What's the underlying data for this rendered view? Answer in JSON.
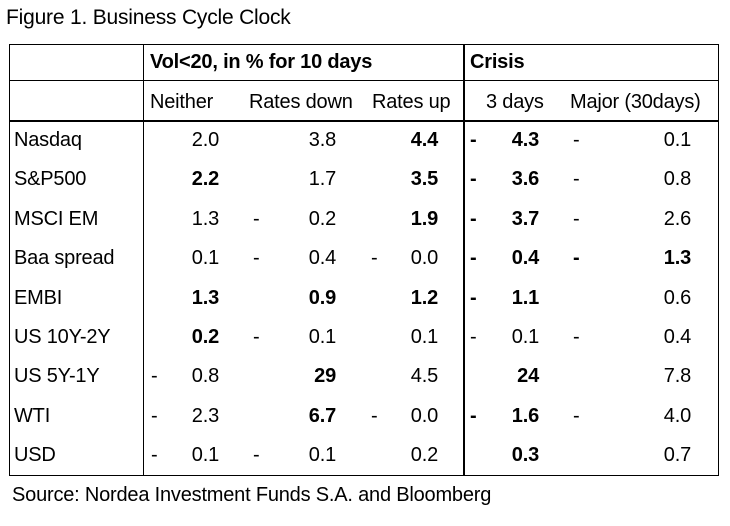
{
  "title": "Figure 1. Business Cycle Clock",
  "source": "Source: Nordea Investment Funds S.A. and Bloomberg",
  "group_headers": {
    "vol": "Vol<20, in % for 10 days",
    "crisis": "Crisis"
  },
  "columns": [
    "Neither",
    "Rates down",
    "Rates up",
    "3 days",
    "Major (30days)"
  ],
  "rows": [
    {
      "label": "Nasdaq",
      "cells": [
        {
          "v": "2.0",
          "neg": false,
          "bold": false
        },
        {
          "v": "3.8",
          "neg": false,
          "bold": false
        },
        {
          "v": "4.4",
          "neg": false,
          "bold": true
        },
        {
          "v": "4.3",
          "neg": true,
          "bold": true
        },
        {
          "v": "0.1",
          "neg": true,
          "bold": false
        }
      ]
    },
    {
      "label": "S&P500",
      "cells": [
        {
          "v": "2.2",
          "neg": false,
          "bold": true
        },
        {
          "v": "1.7",
          "neg": false,
          "bold": false
        },
        {
          "v": "3.5",
          "neg": false,
          "bold": true
        },
        {
          "v": "3.6",
          "neg": true,
          "bold": true
        },
        {
          "v": "0.8",
          "neg": true,
          "bold": false
        }
      ]
    },
    {
      "label": "MSCI EM",
      "cells": [
        {
          "v": "1.3",
          "neg": false,
          "bold": false
        },
        {
          "v": "0.2",
          "neg": true,
          "bold": false
        },
        {
          "v": "1.9",
          "neg": false,
          "bold": true
        },
        {
          "v": "3.7",
          "neg": true,
          "bold": true
        },
        {
          "v": "2.6",
          "neg": true,
          "bold": false
        }
      ]
    },
    {
      "label": "Baa spread",
      "cells": [
        {
          "v": "0.1",
          "neg": false,
          "bold": false
        },
        {
          "v": "0.4",
          "neg": true,
          "bold": false
        },
        {
          "v": "0.0",
          "neg": true,
          "bold": false
        },
        {
          "v": "0.4",
          "neg": true,
          "bold": true
        },
        {
          "v": "1.3",
          "neg": true,
          "bold": true
        }
      ]
    },
    {
      "label": "EMBI",
      "cells": [
        {
          "v": "1.3",
          "neg": false,
          "bold": true
        },
        {
          "v": "0.9",
          "neg": false,
          "bold": true
        },
        {
          "v": "1.2",
          "neg": false,
          "bold": true
        },
        {
          "v": "1.1",
          "neg": true,
          "bold": true
        },
        {
          "v": "0.6",
          "neg": false,
          "bold": false
        }
      ]
    },
    {
      "label": "US 10Y-2Y",
      "cells": [
        {
          "v": "0.2",
          "neg": false,
          "bold": true
        },
        {
          "v": "0.1",
          "neg": true,
          "bold": false
        },
        {
          "v": "0.1",
          "neg": false,
          "bold": false
        },
        {
          "v": "0.1",
          "neg": true,
          "bold": false
        },
        {
          "v": "0.4",
          "neg": true,
          "bold": false
        }
      ]
    },
    {
      "label": "US 5Y-1Y",
      "cells": [
        {
          "v": "0.8",
          "neg": true,
          "bold": false
        },
        {
          "v": "29",
          "neg": false,
          "bold": true
        },
        {
          "v": "4.5",
          "neg": false,
          "bold": false
        },
        {
          "v": "24",
          "neg": false,
          "bold": true
        },
        {
          "v": "7.8",
          "neg": false,
          "bold": false
        }
      ]
    },
    {
      "label": "WTI",
      "cells": [
        {
          "v": "2.3",
          "neg": true,
          "bold": false
        },
        {
          "v": "6.7",
          "neg": false,
          "bold": true
        },
        {
          "v": "0.0",
          "neg": true,
          "bold": false
        },
        {
          "v": "1.6",
          "neg": true,
          "bold": true
        },
        {
          "v": "4.0",
          "neg": true,
          "bold": false
        }
      ]
    },
    {
      "label": "USD",
      "cells": [
        {
          "v": "0.1",
          "neg": true,
          "bold": false
        },
        {
          "v": "0.1",
          "neg": true,
          "bold": false
        },
        {
          "v": "0.2",
          "neg": false,
          "bold": false
        },
        {
          "v": "0.3",
          "neg": false,
          "bold": true
        },
        {
          "v": "0.7",
          "neg": false,
          "bold": false
        }
      ]
    }
  ],
  "neg_sign": "-"
}
